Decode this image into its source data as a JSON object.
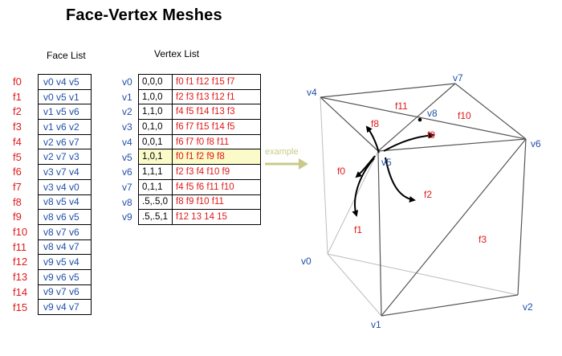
{
  "title": "Face-Vertex  Meshes",
  "face_list_caption": "Face List",
  "vertex_list_caption": "Vertex List",
  "example_label": "example",
  "faces": [
    {
      "name": "f0",
      "verts": "v0 v4 v5"
    },
    {
      "name": "f1",
      "verts": "v0 v5 v1"
    },
    {
      "name": "f2",
      "verts": "v1 v5 v6"
    },
    {
      "name": "f3",
      "verts": "v1 v6 v2"
    },
    {
      "name": "f4",
      "verts": "v2 v6 v7"
    },
    {
      "name": "f5",
      "verts": "v2 v7 v3"
    },
    {
      "name": "f6",
      "verts": "v3 v7 v4"
    },
    {
      "name": "f7",
      "verts": "v3 v4 v0"
    },
    {
      "name": "f8",
      "verts": "v8 v5 v4"
    },
    {
      "name": "f9",
      "verts": "v8 v6 v5"
    },
    {
      "name": "f10",
      "verts": "v8 v7 v6"
    },
    {
      "name": "f11",
      "verts": "v8 v4 v7"
    },
    {
      "name": "f12",
      "verts": "v9 v5 v4"
    },
    {
      "name": "f13",
      "verts": "v9 v6 v5"
    },
    {
      "name": "f14",
      "verts": "v9 v7 v6"
    },
    {
      "name": "f15",
      "verts": "v9 v4 v7"
    }
  ],
  "vertices": [
    {
      "name": "v0",
      "coord": "0,0,0",
      "faces": "f0  f1  f12  f15  f7"
    },
    {
      "name": "v1",
      "coord": "1,0,0",
      "faces": "f2  f3  f13  f12  f1"
    },
    {
      "name": "v2",
      "coord": "1,1,0",
      "faces": "f4  f5  f14  f13  f3"
    },
    {
      "name": "v3",
      "coord": "0,1,0",
      "faces": "f6  f7  f15  f14  f5"
    },
    {
      "name": "v4",
      "coord": "0,0,1",
      "faces": "f6  f7  f0    f8   f11"
    },
    {
      "name": "v5",
      "coord": "1,0,1",
      "faces": "f0  f1   f2    f9    f8",
      "highlight": true
    },
    {
      "name": "v6",
      "coord": "1,1,1",
      "faces": "f2  f3  f4   f10  f9"
    },
    {
      "name": "v7",
      "coord": "0,1,1",
      "faces": "f4  f5  f6   f11  f10"
    },
    {
      "name": "v8",
      "coord": ".5,.5,0",
      "faces": "f8  f9  f10 f11"
    },
    {
      "name": "v9",
      "coord": ".5,.5,1",
      "faces": "f12  13  14  15"
    }
  ],
  "cube_labels": {
    "v4": "v4",
    "v7": "v7",
    "v6": "v6",
    "v5": "v5",
    "v8": "v8",
    "v0": "v0",
    "v1": "v1",
    "v2": "v2",
    "f11": "f11",
    "f10": "f10",
    "f8": "f8",
    "f9": "f9",
    "f0": "f0",
    "f1": "f1",
    "f2": "f2",
    "f3": "f3"
  },
  "colors": {
    "face_red": "#e01a1a",
    "vertex_blue": "#1f4fa8",
    "highlight_yellow": "#fafbc8",
    "example_arrow": "#c9c98a",
    "edge_gray": "#555555"
  }
}
